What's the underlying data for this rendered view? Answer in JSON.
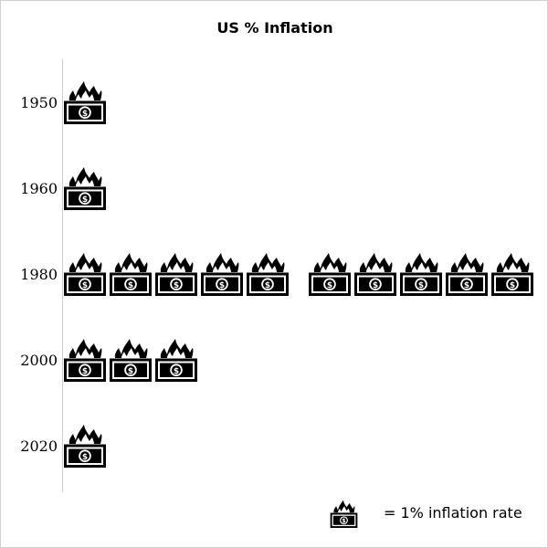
{
  "chart_data": {
    "type": "pictograph",
    "title": "US % Inflation",
    "categories": [
      "1950",
      "1960",
      "1980",
      "2000",
      "2020"
    ],
    "values": [
      1,
      1,
      10,
      3,
      1
    ],
    "unit_icon": "burning-money-icon",
    "legend": {
      "label": "= 1% inflation rate",
      "unit_value": 1
    }
  }
}
